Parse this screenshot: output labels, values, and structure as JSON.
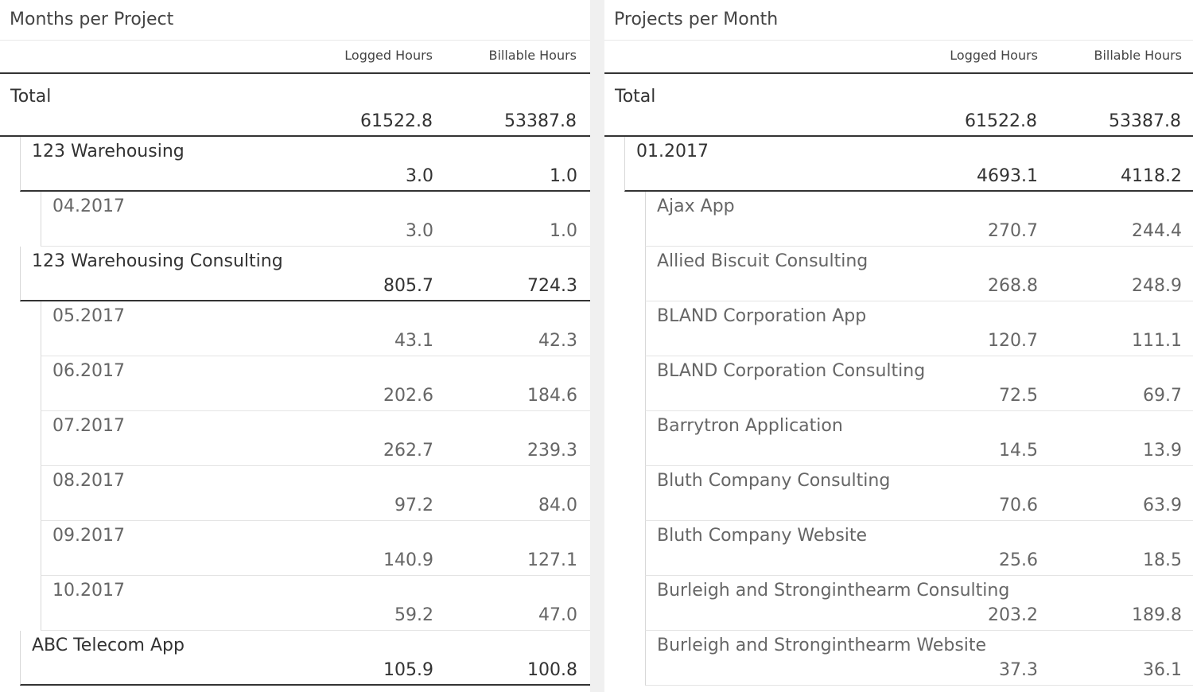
{
  "left": {
    "title": "Months per Project",
    "col_logged": "Logged Hours",
    "col_billable": "Billable Hours",
    "rows": [
      {
        "label": "Total",
        "logged": "61522.8",
        "billable": "53387.8",
        "level": 0
      },
      {
        "label": "123 Warehousing",
        "logged": "3.0",
        "billable": "1.0",
        "level": 1
      },
      {
        "label": "04.2017",
        "logged": "3.0",
        "billable": "1.0",
        "level": 2
      },
      {
        "label": "123 Warehousing Consulting",
        "logged": "805.7",
        "billable": "724.3",
        "level": 1
      },
      {
        "label": "05.2017",
        "logged": "43.1",
        "billable": "42.3",
        "level": 2
      },
      {
        "label": "06.2017",
        "logged": "202.6",
        "billable": "184.6",
        "level": 2
      },
      {
        "label": "07.2017",
        "logged": "262.7",
        "billable": "239.3",
        "level": 2
      },
      {
        "label": "08.2017",
        "logged": "97.2",
        "billable": "84.0",
        "level": 2
      },
      {
        "label": "09.2017",
        "logged": "140.9",
        "billable": "127.1",
        "level": 2
      },
      {
        "label": "10.2017",
        "logged": "59.2",
        "billable": "47.0",
        "level": 2
      },
      {
        "label": "ABC Telecom App",
        "logged": "105.9",
        "billable": "100.8",
        "level": 1
      }
    ]
  },
  "right": {
    "title": "Projects per Month",
    "col_logged": "Logged Hours",
    "col_billable": "Billable Hours",
    "rows": [
      {
        "label": "Total",
        "logged": "61522.8",
        "billable": "53387.8",
        "level": 0
      },
      {
        "label": "01.2017",
        "logged": "4693.1",
        "billable": "4118.2",
        "level": 1
      },
      {
        "label": "Ajax App",
        "logged": "270.7",
        "billable": "244.4",
        "level": 2
      },
      {
        "label": "Allied Biscuit Consulting",
        "logged": "268.8",
        "billable": "248.9",
        "level": 2
      },
      {
        "label": "BLAND Corporation App",
        "logged": "120.7",
        "billable": "111.1",
        "level": 2
      },
      {
        "label": "BLAND Corporation Consulting",
        "logged": "72.5",
        "billable": "69.7",
        "level": 2
      },
      {
        "label": "Barrytron Application",
        "logged": "14.5",
        "billable": "13.9",
        "level": 2
      },
      {
        "label": "Bluth Company Consulting",
        "logged": "70.6",
        "billable": "63.9",
        "level": 2
      },
      {
        "label": "Bluth Company Website",
        "logged": "25.6",
        "billable": "18.5",
        "level": 2
      },
      {
        "label": "Burleigh and Stronginthearm Consulting",
        "logged": "203.2",
        "billable": "189.8",
        "level": 2
      },
      {
        "label": "Burleigh and Stronginthearm Website",
        "logged": "37.3",
        "billable": "36.1",
        "level": 2
      }
    ]
  }
}
